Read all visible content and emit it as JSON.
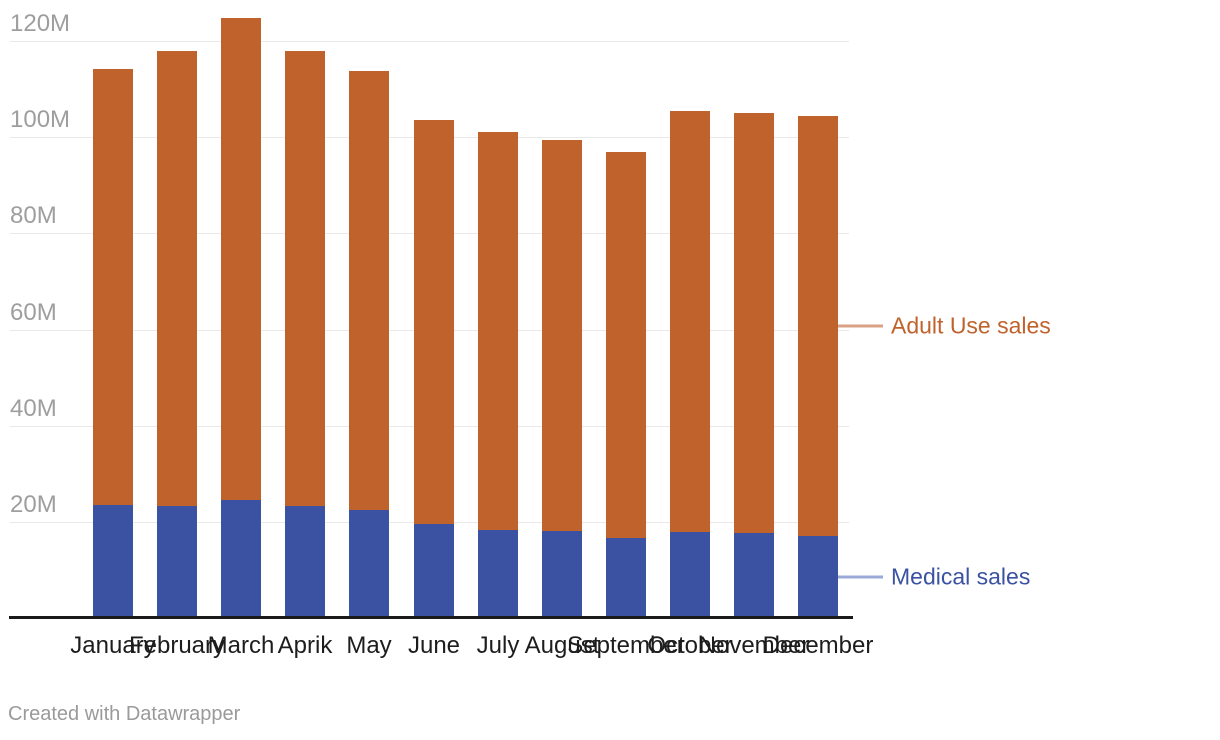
{
  "chart_data": {
    "type": "bar",
    "stacked": true,
    "categories": [
      "January",
      "February",
      "March",
      "Aprik",
      "May",
      "June",
      "July",
      "August",
      "September",
      "October",
      "November",
      "December"
    ],
    "series": [
      {
        "name": "Medical sales",
        "color": "#3b51a2",
        "values": [
          23.4,
          23.3,
          24.6,
          23.2,
          22.4,
          19.5,
          18.3,
          18.0,
          16.6,
          17.8,
          17.6,
          17.0
        ]
      },
      {
        "name": "Adult Use sales",
        "color": "#c0622c",
        "values": [
          90.8,
          94.6,
          100.2,
          94.7,
          91.4,
          84.0,
          82.7,
          81.4,
          80.3,
          87.6,
          87.4,
          87.4
        ]
      }
    ],
    "unit": "M",
    "ytick_values": [
      20,
      40,
      60,
      80,
      100,
      120
    ],
    "ytick_labels": [
      "20M",
      "40M",
      "60M",
      "80M",
      "100M",
      "120M"
    ],
    "ylim": [
      0,
      130
    ],
    "grid": true,
    "legend_position": "right-of-last-bar"
  },
  "footer": {
    "credit": "Created with Datawrapper"
  },
  "colors": {
    "adult_bar": "#c0622c",
    "medical_bar": "#3b51a2",
    "adult_legend_line": "#d9a183",
    "medical_legend_line": "#9aa9d9",
    "gridline": "#e9e9e9",
    "axis_line": "#1a1a1a",
    "ytick_text": "#9e9e9e",
    "xtick_text": "#1d1d1d",
    "credit_text": "#9a9a9a"
  }
}
